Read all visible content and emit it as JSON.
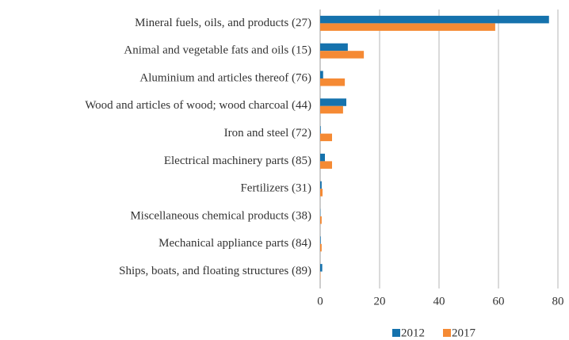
{
  "chart_data": {
    "type": "hbar",
    "categories": [
      "Mineral fuels, oils, and products (27)",
      "Animal and vegetable fats and oils (15)",
      "Aluminium and articles thereof (76)",
      "Wood and articles of wood; wood charcoal (44)",
      "Iron and steel (72)",
      "Electrical machinery parts  (85)",
      "Fertilizers (31)",
      "Miscellaneous chemical products (38)",
      "Mechanical appliance parts (84)",
      "Ships, boats, and floating structures (89)"
    ],
    "series": [
      {
        "name": "2012",
        "color": "#1572ad",
        "values": [
          77,
          9.3,
          1,
          8.8,
          0.2,
          1.6,
          0.5,
          0.1,
          0.2,
          0.7
        ]
      },
      {
        "name": "2017",
        "color": "#f58a34",
        "values": [
          58.9,
          14.7,
          8.3,
          7.7,
          4,
          4,
          0.8,
          0.5,
          0.5,
          0.1
        ]
      }
    ],
    "xlim": [
      0,
      80
    ],
    "xticks": [
      0,
      20,
      40,
      60,
      80
    ],
    "grid": true,
    "legend": "bottom"
  }
}
